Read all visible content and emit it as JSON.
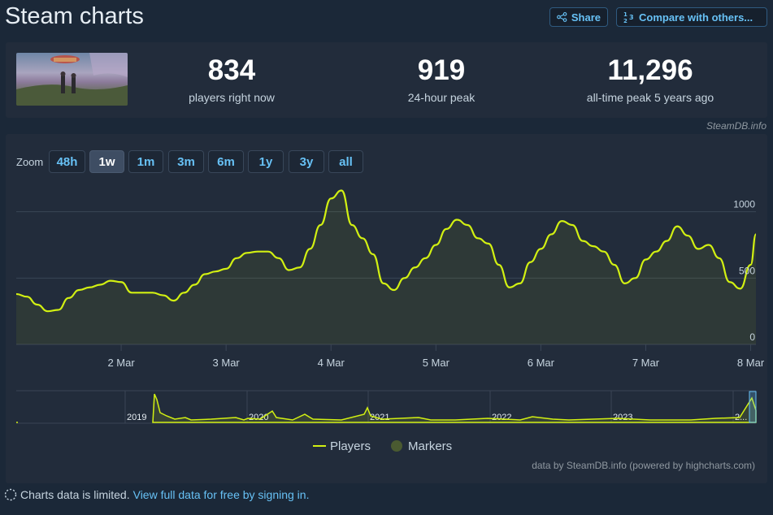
{
  "header": {
    "title": "Steam charts",
    "share_label": "Share",
    "compare_label": "Compare with others..."
  },
  "stats": {
    "current": {
      "value": "834",
      "label": "players right now"
    },
    "peak24": {
      "value": "919",
      "label": "24-hour peak"
    },
    "alltime": {
      "value": "11,296",
      "label": "all-time peak 5 years ago"
    }
  },
  "brand": "SteamDB.info",
  "zoom": {
    "label": "Zoom",
    "options": [
      "48h",
      "1w",
      "1m",
      "3m",
      "6m",
      "1y",
      "3y",
      "all"
    ],
    "selected": "1w"
  },
  "legend": {
    "players": "Players",
    "markers": "Markers"
  },
  "credits": "data by SteamDB.info (powered by highcharts.com)",
  "footer": {
    "text": "Charts data is limited.",
    "link": "View full data for free by signing in."
  },
  "colors": {
    "line": "#d2f012",
    "grid": "#3a4556",
    "accent": "#67c1f5",
    "marker": "#4a5a31"
  },
  "chart_data": {
    "type": "area",
    "title": "",
    "x_ticks": [
      "2 Mar",
      "3 Mar",
      "4 Mar",
      "5 Mar",
      "6 Mar",
      "7 Mar",
      "8 Mar"
    ],
    "y_ticks": [
      0,
      500,
      1000
    ],
    "ylim": [
      0,
      1200
    ],
    "x_range_days": [
      1.0,
      8.05
    ],
    "series": [
      {
        "name": "Players",
        "x": [
          1.0,
          1.1,
          1.2,
          1.3,
          1.4,
          1.5,
          1.6,
          1.7,
          1.8,
          1.9,
          2.0,
          2.1,
          2.2,
          2.3,
          2.4,
          2.5,
          2.6,
          2.7,
          2.8,
          2.9,
          3.0,
          3.1,
          3.2,
          3.3,
          3.4,
          3.5,
          3.6,
          3.7,
          3.8,
          3.9,
          4.0,
          4.1,
          4.2,
          4.3,
          4.4,
          4.5,
          4.6,
          4.7,
          4.8,
          4.9,
          5.0,
          5.1,
          5.2,
          5.3,
          5.4,
          5.5,
          5.6,
          5.7,
          5.8,
          5.9,
          6.0,
          6.1,
          6.2,
          6.3,
          6.4,
          6.5,
          6.6,
          6.7,
          6.8,
          6.9,
          7.0,
          7.1,
          7.2,
          7.3,
          7.4,
          7.5,
          7.6,
          7.7,
          7.8,
          7.9,
          8.0,
          8.05
        ],
        "values": [
          380,
          360,
          300,
          250,
          260,
          350,
          410,
          430,
          450,
          480,
          470,
          390,
          390,
          390,
          370,
          330,
          390,
          450,
          530,
          550,
          570,
          650,
          690,
          700,
          700,
          650,
          560,
          580,
          720,
          900,
          1100,
          1160,
          900,
          800,
          680,
          460,
          410,
          500,
          580,
          650,
          750,
          870,
          940,
          900,
          800,
          760,
          600,
          430,
          460,
          620,
          720,
          830,
          930,
          900,
          780,
          740,
          700,
          600,
          460,
          500,
          640,
          700,
          780,
          890,
          820,
          720,
          750,
          650,
          470,
          420,
          600,
          830
        ]
      }
    ],
    "navigator": {
      "years": [
        "2019",
        "2020",
        "2021",
        "2022",
        "2023",
        "2..."
      ],
      "note": "overview of full history; early peak near 2019"
    }
  }
}
